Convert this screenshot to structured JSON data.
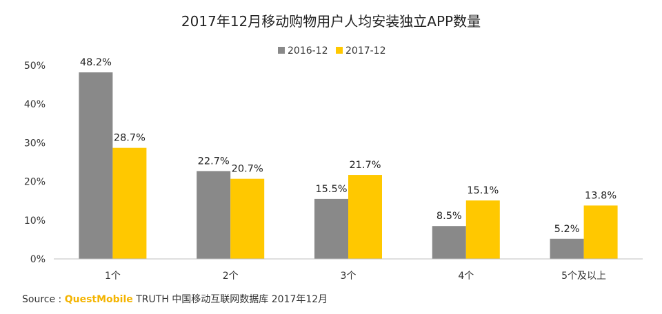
{
  "chart_data": {
    "type": "bar",
    "title": "2017年12月移动购物用户人均安装独立APP数量",
    "categories": [
      "1个",
      "2个",
      "3个",
      "4个",
      "5个及以上"
    ],
    "series": [
      {
        "name": "2016-12",
        "color": "#898989",
        "values": [
          48.2,
          22.7,
          15.5,
          8.5,
          5.2
        ],
        "labels": [
          "48.2%",
          "22.7%",
          "15.5%",
          "8.5%",
          "5.2%"
        ]
      },
      {
        "name": "2017-12",
        "color": "#ffc800",
        "values": [
          28.7,
          20.7,
          21.7,
          15.1,
          13.8
        ],
        "labels": [
          "28.7%",
          "20.7%",
          "21.7%",
          "15.1%",
          "13.8%"
        ]
      }
    ],
    "ylim": [
      0,
      50
    ],
    "yticks": [
      0,
      10,
      20,
      30,
      40,
      50
    ],
    "ytick_labels": [
      "0%",
      "10%",
      "20%",
      "30%",
      "40%",
      "50%"
    ],
    "legend_position": "top-center",
    "grid": false
  },
  "source": {
    "prefix": "Source :",
    "brand": "QuestMobile",
    "rest": "TRUTH 中国移动互联网数据库 2017年12月"
  }
}
